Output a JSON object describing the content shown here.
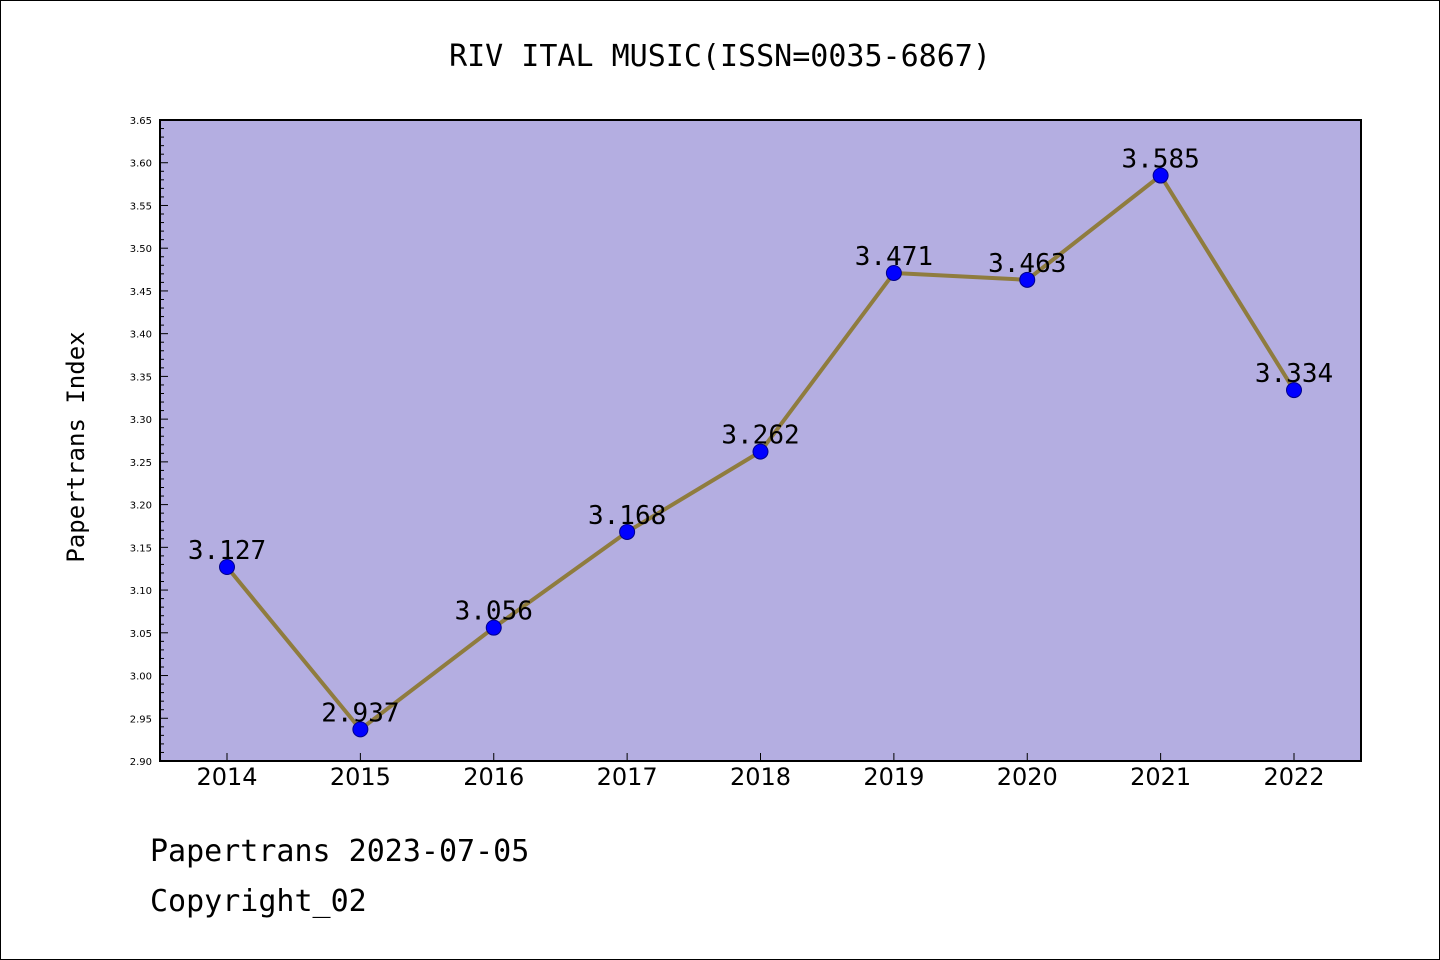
{
  "chart_data": {
    "type": "line",
    "title": "RIV ITAL MUSIC(ISSN=0035-6867)",
    "xlabel": "",
    "ylabel": "Papertrans Index",
    "categories": [
      "2014",
      "2015",
      "2016",
      "2017",
      "2018",
      "2019",
      "2020",
      "2021",
      "2022"
    ],
    "values": [
      3.127,
      2.937,
      3.056,
      3.168,
      3.262,
      3.471,
      3.463,
      3.585,
      3.334
    ],
    "data_labels": [
      "3.127",
      "2.937",
      "3.056",
      "3.168",
      "3.262",
      "3.471",
      "3.463",
      "3.585",
      "3.334"
    ],
    "ylim": [
      2.9,
      3.65
    ],
    "yticks": [
      "2.90",
      "2.95",
      "3.00",
      "3.05",
      "3.10",
      "3.15",
      "3.20",
      "3.25",
      "3.30",
      "3.35",
      "3.40",
      "3.45",
      "3.50",
      "3.55",
      "3.60",
      "3.65"
    ],
    "grid": false,
    "legend": "none",
    "colors": {
      "plot_background": "#b4aee1",
      "line": "#8f7c3e",
      "marker_fill": "#0000ff",
      "marker_edge": "#00008b"
    }
  },
  "footer": {
    "date_line": "Papertrans 2023-07-05",
    "copyright_line": "Copyright_02"
  }
}
